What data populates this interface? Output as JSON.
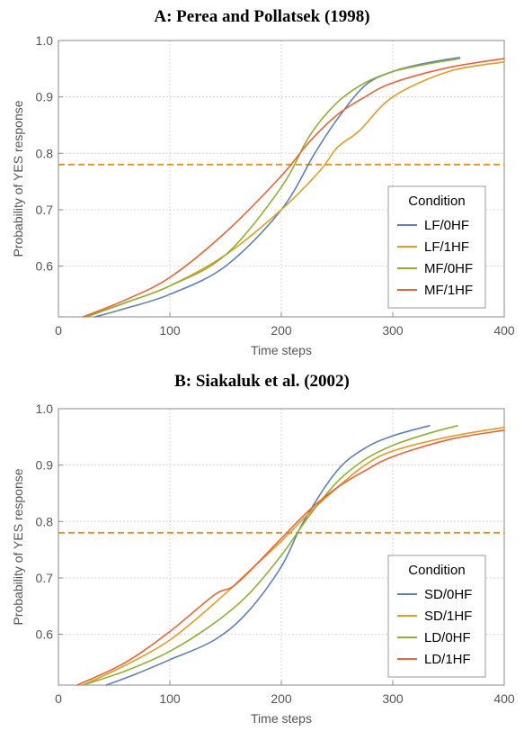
{
  "chart_data": [
    {
      "type": "line",
      "title": "A: Perea and Pollatsek (1998)",
      "xlabel": "Time steps",
      "ylabel": "Probability of YES response",
      "xlim": [
        0,
        400
      ],
      "ylim": [
        0.51,
        1.0
      ],
      "xticks": [
        "0",
        "100",
        "200",
        "300",
        "400"
      ],
      "yticks": [
        "0.6",
        "0.7",
        "0.8",
        "0.9",
        "1.0"
      ],
      "grid": true,
      "threshold": 0.78,
      "legend": {
        "title": "Condition",
        "placement": "right"
      },
      "series": [
        {
          "name": "LF/0HF",
          "color": "#5E81B5",
          "x": [
            33,
            60,
            100,
            150,
            200,
            230,
            250,
            275,
            300,
            330,
            360
          ],
          "y": [
            0.51,
            0.525,
            0.55,
            0.6,
            0.7,
            0.8,
            0.86,
            0.92,
            0.945,
            0.96,
            0.97
          ]
        },
        {
          "name": "LF/1HF",
          "color": "#E19C24",
          "x": [
            25,
            60,
            100,
            150,
            200,
            235,
            250,
            270,
            300,
            350,
            400
          ],
          "y": [
            0.51,
            0.535,
            0.565,
            0.62,
            0.7,
            0.77,
            0.81,
            0.84,
            0.9,
            0.945,
            0.962
          ]
        },
        {
          "name": "MF/0HF",
          "color": "#8FB032",
          "x": [
            25,
            60,
            100,
            150,
            200,
            225,
            250,
            275,
            300,
            330,
            360
          ],
          "y": [
            0.51,
            0.535,
            0.565,
            0.62,
            0.74,
            0.83,
            0.89,
            0.925,
            0.945,
            0.958,
            0.968
          ]
        },
        {
          "name": "MF/1HF",
          "color": "#EB6235",
          "x": [
            22,
            60,
            100,
            150,
            200,
            225,
            250,
            275,
            300,
            350,
            400
          ],
          "y": [
            0.51,
            0.54,
            0.58,
            0.66,
            0.76,
            0.82,
            0.868,
            0.9,
            0.925,
            0.952,
            0.968
          ]
        }
      ]
    },
    {
      "type": "line",
      "title": "B: Siakaluk et al. (2002)",
      "xlabel": "Time steps",
      "ylabel": "Probability of YES response",
      "xlim": [
        0,
        400
      ],
      "ylim": [
        0.51,
        1.0
      ],
      "xticks": [
        "0",
        "100",
        "200",
        "300",
        "400"
      ],
      "yticks": [
        "0.6",
        "0.7",
        "0.8",
        "0.9",
        "1.0"
      ],
      "grid": true,
      "threshold": 0.78,
      "legend": {
        "title": "Condition",
        "placement": "bottom-right"
      },
      "series": [
        {
          "name": "SD/0HF",
          "color": "#5E81B5",
          "x": [
            43,
            70,
            100,
            140,
            170,
            200,
            220,
            250,
            275,
            300,
            333
          ],
          "y": [
            0.51,
            0.53,
            0.555,
            0.59,
            0.64,
            0.72,
            0.8,
            0.89,
            0.93,
            0.952,
            0.97
          ]
        },
        {
          "name": "SD/1HF",
          "color": "#E19C24",
          "x": [
            22,
            60,
            100,
            140,
            170,
            200,
            225,
            250,
            275,
            300,
            350,
            400
          ],
          "y": [
            0.51,
            0.545,
            0.59,
            0.655,
            0.71,
            0.765,
            0.815,
            0.86,
            0.9,
            0.925,
            0.95,
            0.967
          ]
        },
        {
          "name": "LD/0HF",
          "color": "#8FB032",
          "x": [
            22,
            60,
            100,
            140,
            170,
            200,
            225,
            250,
            275,
            300,
            330,
            358
          ],
          "y": [
            0.51,
            0.535,
            0.57,
            0.62,
            0.67,
            0.74,
            0.81,
            0.87,
            0.91,
            0.935,
            0.955,
            0.97
          ]
        },
        {
          "name": "LD/1HF",
          "color": "#EB6235",
          "x": [
            17,
            60,
            100,
            140,
            160,
            200,
            225,
            250,
            275,
            300,
            350,
            400
          ],
          "y": [
            0.51,
            0.55,
            0.605,
            0.67,
            0.69,
            0.77,
            0.82,
            0.86,
            0.89,
            0.915,
            0.945,
            0.962
          ]
        }
      ]
    }
  ]
}
